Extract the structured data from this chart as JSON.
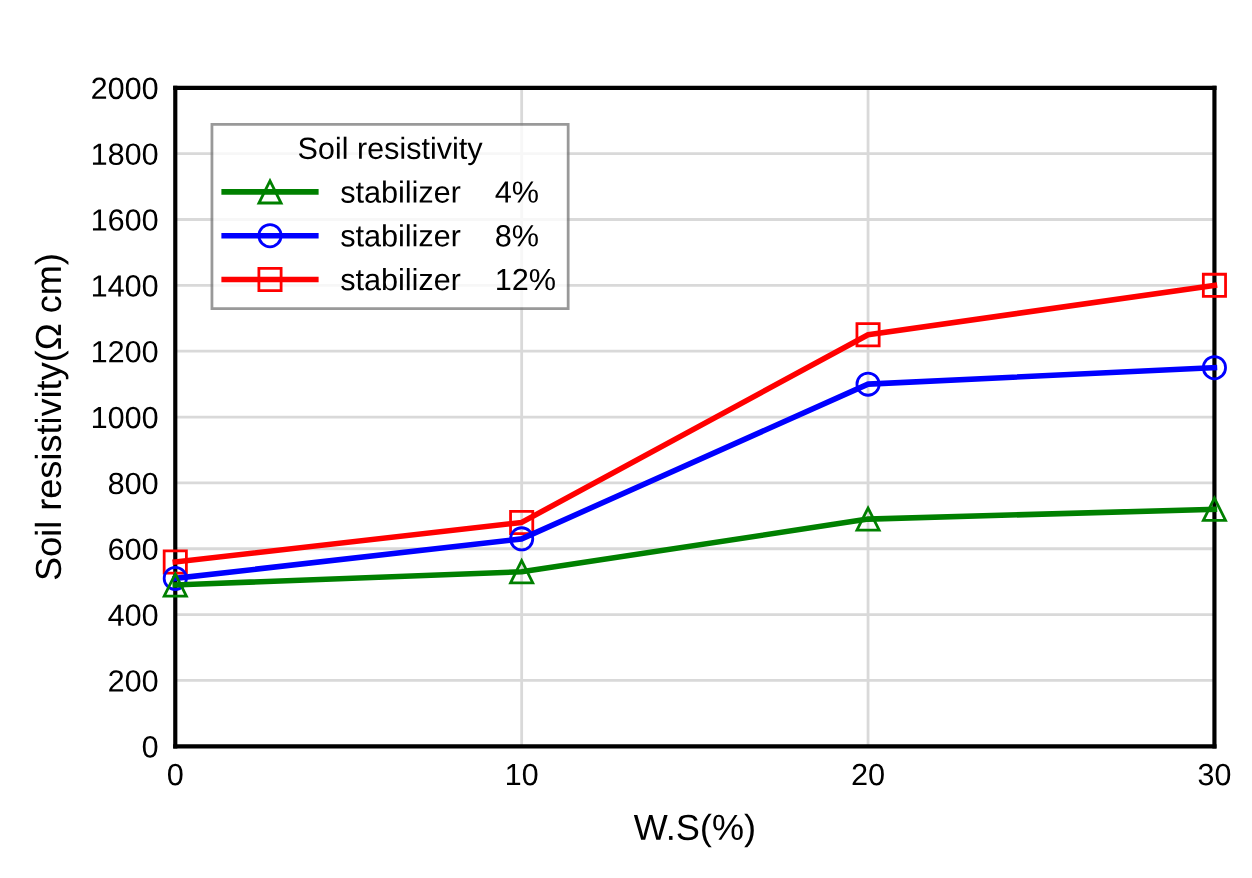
{
  "chart_data": {
    "type": "line",
    "xlabel": "W.S(%)",
    "ylabel": "Soil resistivity(Ω cm)",
    "legend_title": "Soil resistivity",
    "x": [
      0,
      10,
      20,
      30
    ],
    "series": [
      {
        "name": "stabilizer    4%",
        "color": "#008000",
        "marker": "triangle",
        "values": [
          490,
          530,
          690,
          720
        ]
      },
      {
        "name": "stabilizer    8%",
        "color": "#0000ff",
        "marker": "circle",
        "values": [
          510,
          630,
          1100,
          1150
        ]
      },
      {
        "name": "stabilizer    12%",
        "color": "#ff0000",
        "marker": "square",
        "values": [
          560,
          680,
          1250,
          1400
        ]
      }
    ],
    "xlim": [
      0,
      30
    ],
    "xticks": [
      0,
      10,
      20,
      30
    ],
    "ylim": [
      0,
      2000
    ],
    "yticks": [
      0,
      200,
      400,
      600,
      800,
      1000,
      1200,
      1400,
      1600,
      1800,
      2000
    ],
    "grid": true,
    "legend": "top left"
  }
}
